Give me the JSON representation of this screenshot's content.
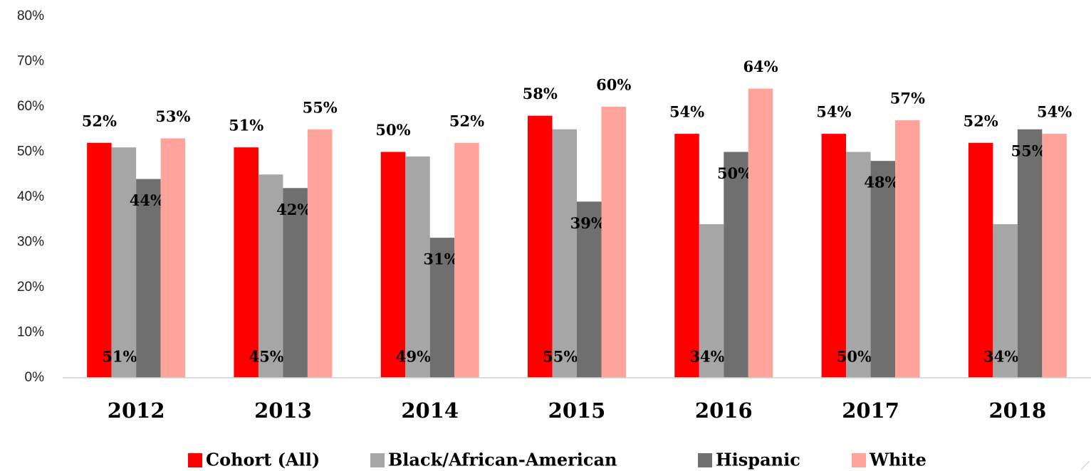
{
  "chart_data": {
    "type": "bar",
    "categories": [
      "2012",
      "2013",
      "2014",
      "2015",
      "2016",
      "2017",
      "2018"
    ],
    "series": [
      {
        "name": "Cohort (All)",
        "color": "#ff0000",
        "values": [
          52,
          51,
          50,
          58,
          54,
          54,
          52
        ],
        "value_labels": [
          "52%",
          "51%",
          "50%",
          "58%",
          "54%",
          "54%",
          "52%"
        ]
      },
      {
        "name": "Black/African-American",
        "color": "#a6a6a6",
        "values": [
          51,
          45,
          49,
          55,
          34,
          50,
          34
        ],
        "value_labels": [
          "51%",
          "45%",
          "49%",
          "55%",
          "34%",
          "50%",
          "34%"
        ]
      },
      {
        "name": "Hispanic",
        "color": "#6f6f6f",
        "values": [
          44,
          42,
          31,
          39,
          50,
          48,
          55
        ],
        "value_labels": [
          "44%",
          "42%",
          "31%",
          "39%",
          "50%",
          "48%",
          "55%"
        ]
      },
      {
        "name": "White",
        "color": "#ffa39b",
        "values": [
          53,
          55,
          52,
          60,
          64,
          57,
          54
        ],
        "value_labels": [
          "53%",
          "55%",
          "52%",
          "60%",
          "64%",
          "57%",
          "54%"
        ]
      }
    ],
    "ylim": [
      0,
      80
    ],
    "yticks": [
      {
        "value": 0,
        "label": "0%"
      },
      {
        "value": 10,
        "label": "10%"
      },
      {
        "value": 20,
        "label": "20%"
      },
      {
        "value": 30,
        "label": "30%"
      },
      {
        "value": 40,
        "label": "40%"
      },
      {
        "value": 50,
        "label": "50%"
      },
      {
        "value": 60,
        "label": "60%"
      },
      {
        "value": 70,
        "label": "70%"
      },
      {
        "value": 80,
        "label": "80%"
      }
    ],
    "legend": "bottom"
  }
}
